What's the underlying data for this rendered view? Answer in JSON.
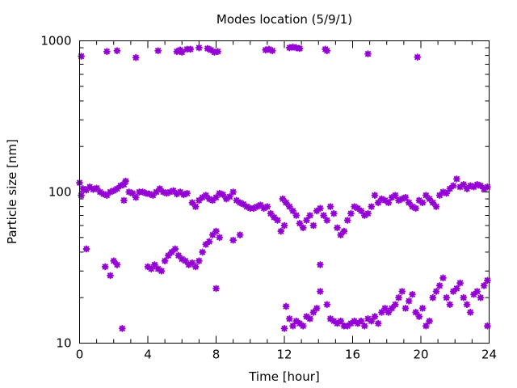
{
  "chart_data": {
    "type": "scatter",
    "title": "Modes location (5/9/1)",
    "xlabel": "Time [hour]",
    "ylabel": "Particle size [nm]",
    "xlim": [
      0,
      24
    ],
    "ylim": [
      10,
      1000
    ],
    "yscale": "log",
    "grid": false,
    "legend": "none",
    "marker_color": "#9400d3",
    "marker": "star",
    "x_ticks": [
      {
        "value": 0,
        "label": "0"
      },
      {
        "value": 4,
        "label": "4"
      },
      {
        "value": 8,
        "label": "8"
      },
      {
        "value": 12,
        "label": "12"
      },
      {
        "value": 16,
        "label": "16"
      },
      {
        "value": 20,
        "label": "20"
      },
      {
        "value": 24,
        "label": "24"
      }
    ],
    "y_ticks": [
      {
        "value": 10,
        "label": "10"
      },
      {
        "value": 100,
        "label": "100"
      },
      {
        "value": 1000,
        "label": "1000"
      }
    ],
    "series": [
      {
        "points": [
          [
            0.1,
            790
          ],
          [
            1.6,
            850
          ],
          [
            2.2,
            860
          ],
          [
            3.3,
            775
          ],
          [
            4.6,
            860
          ],
          [
            5.7,
            850
          ],
          [
            5.9,
            870
          ],
          [
            6.0,
            840
          ],
          [
            6.3,
            880
          ],
          [
            6.5,
            880
          ],
          [
            7.0,
            900
          ],
          [
            7.5,
            890
          ],
          [
            7.7,
            870
          ],
          [
            7.9,
            840
          ],
          [
            8.1,
            850
          ],
          [
            10.9,
            870
          ],
          [
            11.1,
            880
          ],
          [
            11.3,
            860
          ],
          [
            12.3,
            900
          ],
          [
            12.5,
            910
          ],
          [
            12.7,
            900
          ],
          [
            12.9,
            890
          ],
          [
            14.4,
            880
          ],
          [
            14.5,
            860
          ],
          [
            16.9,
            820
          ],
          [
            19.8,
            780
          ],
          [
            0.0,
            115
          ],
          [
            0.1,
            95
          ],
          [
            0.2,
            105
          ],
          [
            0.4,
            103
          ],
          [
            0.6,
            108
          ],
          [
            0.8,
            104
          ],
          [
            1.0,
            106
          ],
          [
            1.2,
            100
          ],
          [
            1.4,
            97
          ],
          [
            1.6,
            95
          ],
          [
            1.8,
            100
          ],
          [
            2.0,
            102
          ],
          [
            2.2,
            105
          ],
          [
            2.4,
            110
          ],
          [
            2.6,
            112
          ],
          [
            2.7,
            118
          ],
          [
            2.6,
            88
          ],
          [
            2.9,
            100
          ],
          [
            3.1,
            98
          ],
          [
            3.3,
            92
          ],
          [
            3.5,
            100
          ],
          [
            3.7,
            100
          ],
          [
            3.9,
            98
          ],
          [
            4.1,
            97
          ],
          [
            4.3,
            95
          ],
          [
            4.5,
            100
          ],
          [
            4.7,
            105
          ],
          [
            4.9,
            100
          ],
          [
            5.1,
            98
          ],
          [
            5.3,
            100
          ],
          [
            5.5,
            102
          ],
          [
            5.7,
            97
          ],
          [
            5.9,
            100
          ],
          [
            6.1,
            96
          ],
          [
            6.3,
            98
          ],
          [
            6.6,
            85
          ],
          [
            6.8,
            80
          ],
          [
            7.0,
            88
          ],
          [
            7.2,
            92
          ],
          [
            7.4,
            95
          ],
          [
            7.6,
            90
          ],
          [
            7.8,
            88
          ],
          [
            8.0,
            92
          ],
          [
            8.2,
            98
          ],
          [
            8.4,
            96
          ],
          [
            8.6,
            90
          ],
          [
            8.8,
            93
          ],
          [
            9.0,
            100
          ],
          [
            9.2,
            88
          ],
          [
            9.4,
            85
          ],
          [
            9.6,
            83
          ],
          [
            9.8,
            80
          ],
          [
            10.0,
            78
          ],
          [
            10.2,
            78
          ],
          [
            10.4,
            80
          ],
          [
            10.6,
            82
          ],
          [
            10.8,
            78
          ],
          [
            11.0,
            80
          ],
          [
            11.2,
            72
          ],
          [
            11.4,
            68
          ],
          [
            11.6,
            65
          ],
          [
            11.8,
            55
          ],
          [
            12.0,
            60
          ],
          [
            11.9,
            90
          ],
          [
            12.1,
            85
          ],
          [
            12.3,
            80
          ],
          [
            12.5,
            75
          ],
          [
            12.7,
            70
          ],
          [
            12.9,
            62
          ],
          [
            13.1,
            58
          ],
          [
            13.3,
            65
          ],
          [
            13.5,
            70
          ],
          [
            13.7,
            60
          ],
          [
            13.9,
            75
          ],
          [
            14.1,
            78
          ],
          [
            14.3,
            70
          ],
          [
            14.5,
            65
          ],
          [
            14.7,
            80
          ],
          [
            14.9,
            72
          ],
          [
            15.1,
            58
          ],
          [
            15.3,
            52
          ],
          [
            15.5,
            55
          ],
          [
            15.7,
            65
          ],
          [
            15.9,
            72
          ],
          [
            16.1,
            80
          ],
          [
            16.3,
            78
          ],
          [
            16.5,
            75
          ],
          [
            16.7,
            70
          ],
          [
            16.9,
            72
          ],
          [
            17.1,
            80
          ],
          [
            17.3,
            95
          ],
          [
            17.5,
            85
          ],
          [
            17.7,
            90
          ],
          [
            17.9,
            88
          ],
          [
            18.1,
            85
          ],
          [
            18.3,
            92
          ],
          [
            18.5,
            95
          ],
          [
            18.7,
            88
          ],
          [
            18.9,
            90
          ],
          [
            19.1,
            92
          ],
          [
            19.3,
            85
          ],
          [
            19.5,
            80
          ],
          [
            19.7,
            78
          ],
          [
            19.9,
            88
          ],
          [
            20.1,
            85
          ],
          [
            20.3,
            95
          ],
          [
            20.5,
            90
          ],
          [
            20.7,
            85
          ],
          [
            20.9,
            80
          ],
          [
            21.1,
            95
          ],
          [
            21.3,
            100
          ],
          [
            21.5,
            98
          ],
          [
            21.7,
            105
          ],
          [
            21.9,
            110
          ],
          [
            22.1,
            122
          ],
          [
            22.3,
            108
          ],
          [
            22.5,
            112
          ],
          [
            22.7,
            105
          ],
          [
            22.9,
            110
          ],
          [
            23.1,
            108
          ],
          [
            23.3,
            112
          ],
          [
            23.5,
            110
          ],
          [
            23.7,
            105
          ],
          [
            23.9,
            108
          ],
          [
            0.4,
            42
          ],
          [
            1.5,
            32
          ],
          [
            1.8,
            28
          ],
          [
            2.0,
            35
          ],
          [
            2.2,
            33
          ],
          [
            2.5,
            12.5
          ],
          [
            4.0,
            32
          ],
          [
            4.2,
            31
          ],
          [
            4.4,
            33
          ],
          [
            4.6,
            31
          ],
          [
            4.8,
            30
          ],
          [
            5.0,
            35
          ],
          [
            5.2,
            38
          ],
          [
            5.4,
            40
          ],
          [
            5.6,
            42
          ],
          [
            5.8,
            38
          ],
          [
            6.0,
            36
          ],
          [
            6.2,
            35
          ],
          [
            6.4,
            33
          ],
          [
            6.6,
            34
          ],
          [
            6.8,
            32
          ],
          [
            7.0,
            35
          ],
          [
            7.2,
            40
          ],
          [
            7.4,
            45
          ],
          [
            7.6,
            47
          ],
          [
            7.8,
            52
          ],
          [
            8.0,
            55
          ],
          [
            8.2,
            50
          ],
          [
            8.0,
            23
          ],
          [
            9.0,
            48
          ],
          [
            9.4,
            52
          ],
          [
            12.0,
            12.5
          ],
          [
            12.1,
            17.5
          ],
          [
            12.3,
            14.5
          ],
          [
            12.5,
            13
          ],
          [
            12.7,
            14
          ],
          [
            12.9,
            13.5
          ],
          [
            13.1,
            13
          ],
          [
            13.3,
            15
          ],
          [
            13.5,
            14.5
          ],
          [
            13.7,
            16
          ],
          [
            13.9,
            17
          ],
          [
            14.1,
            33
          ],
          [
            14.1,
            22
          ],
          [
            14.5,
            18
          ],
          [
            14.7,
            14.5
          ],
          [
            14.9,
            14
          ],
          [
            15.1,
            13.5
          ],
          [
            15.3,
            14
          ],
          [
            15.5,
            13
          ],
          [
            15.7,
            13
          ],
          [
            15.9,
            13.5
          ],
          [
            16.1,
            14
          ],
          [
            16.3,
            13.5
          ],
          [
            16.5,
            14
          ],
          [
            16.7,
            13
          ],
          [
            16.9,
            14.5
          ],
          [
            17.1,
            14
          ],
          [
            17.3,
            15
          ],
          [
            17.5,
            13.5
          ],
          [
            17.7,
            16
          ],
          [
            17.9,
            17
          ],
          [
            18.1,
            16
          ],
          [
            18.3,
            17
          ],
          [
            18.5,
            18
          ],
          [
            18.7,
            20
          ],
          [
            18.9,
            22
          ],
          [
            19.1,
            17
          ],
          [
            19.3,
            19
          ],
          [
            19.5,
            21
          ],
          [
            19.7,
            16
          ],
          [
            19.9,
            15
          ],
          [
            20.1,
            17
          ],
          [
            20.3,
            13
          ],
          [
            20.5,
            14
          ],
          [
            20.7,
            20
          ],
          [
            20.9,
            22
          ],
          [
            21.1,
            24
          ],
          [
            21.3,
            27
          ],
          [
            21.5,
            20
          ],
          [
            21.7,
            18
          ],
          [
            21.9,
            22
          ],
          [
            22.1,
            23
          ],
          [
            22.3,
            25
          ],
          [
            22.5,
            20
          ],
          [
            22.7,
            18
          ],
          [
            22.9,
            16
          ],
          [
            23.1,
            21
          ],
          [
            23.3,
            22
          ],
          [
            23.5,
            20
          ],
          [
            23.7,
            24
          ],
          [
            23.9,
            26
          ],
          [
            23.9,
            13
          ]
        ]
      }
    ]
  }
}
